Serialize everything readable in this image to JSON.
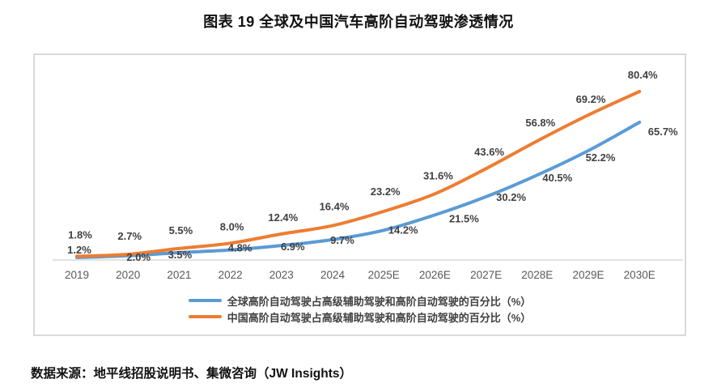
{
  "page": {
    "title": "图表 19 全球及中国汽车高阶自动驾驶渗透情况",
    "source": "数据来源：地平线招股说明书、集微咨询（JW Insights）"
  },
  "chart_data": {
    "type": "line",
    "title": "图表 19 全球及中国汽车高阶自动驾驶渗透情况",
    "categories": [
      "2019",
      "2020",
      "2021",
      "2022",
      "2023",
      "2024",
      "2025E",
      "2026E",
      "2027E",
      "2028E",
      "2029E",
      "2030E"
    ],
    "series": [
      {
        "name": "全球高阶自动驾驶占高级辅助驾驶和高阶自动驾驶的百分比（%）",
        "color": "#5B9BD5",
        "values": [
          1.2,
          2.0,
          3.5,
          4.8,
          6.9,
          9.7,
          14.2,
          21.5,
          30.2,
          40.5,
          52.2,
          65.7
        ]
      },
      {
        "name": "中国高阶自动驾驶占高级辅助驾驶和高阶自动驾驶的百分比（%）",
        "color": "#ED7D31",
        "values": [
          1.8,
          2.7,
          5.5,
          8.0,
          12.4,
          16.4,
          23.2,
          31.6,
          43.6,
          56.8,
          69.2,
          80.4
        ]
      }
    ],
    "label_format": "{value}%",
    "ylim": [
      0,
      90
    ],
    "grid": false,
    "data_labels": true,
    "legend_position": "bottom",
    "axis_line_color": "#d9d9d9",
    "data_label_color": "#404040",
    "tick_label_color": "#595959"
  }
}
